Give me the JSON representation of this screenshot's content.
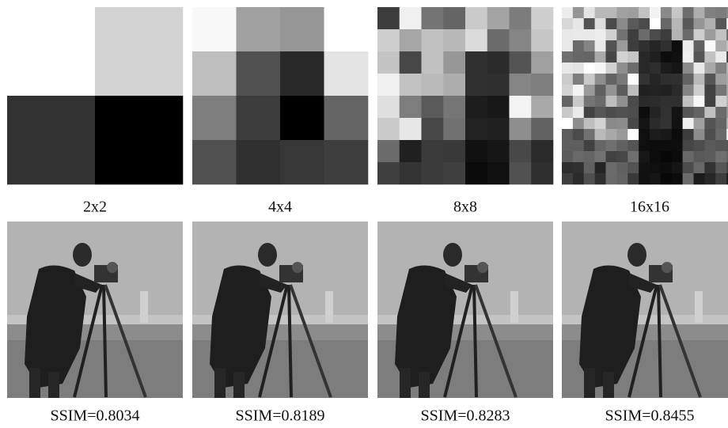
{
  "top_row": {
    "labels": [
      "2x2",
      "4x4",
      "8x8",
      "16x16"
    ]
  },
  "bottom_row": {
    "labels": [
      "SSIM=0.8034",
      "SSIM=0.8189",
      "SSIM=0.8283",
      "SSIM=0.8455"
    ]
  }
}
